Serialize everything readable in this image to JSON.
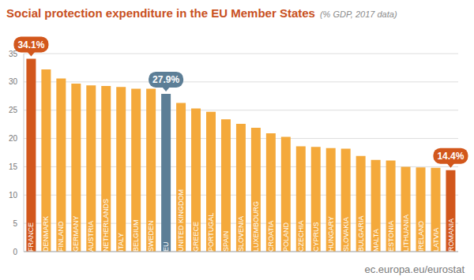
{
  "chart_data": {
    "type": "bar",
    "title": "Social protection expenditure in the EU Member States",
    "subtitle": "(% GDP, 2017 data)",
    "source": "ec.europa.eu/eurostat",
    "categories": [
      "FRANCE",
      "DENMARK",
      "FINLAND",
      "GERMANY",
      "AUSTRIA",
      "NETHERLANDS",
      "ITALY",
      "BELGIUM",
      "SWEDEN",
      "EU",
      "UNITED KINGDOM",
      "GREECE",
      "PORTUGAL",
      "SPAIN",
      "SLOVENIA",
      "LUXEMBOURG",
      "CROATIA",
      "POLAND",
      "CZECHIA",
      "CYPRUS",
      "HUNGARY",
      "SLOVAKIA",
      "BULGARIA",
      "MALTA",
      "ESTONIA",
      "LITHUANIA",
      "IRELAND",
      "LATVIA",
      "ROMANIA"
    ],
    "values": [
      34.1,
      32.2,
      30.6,
      29.7,
      29.4,
      29.3,
      29.1,
      28.8,
      28.8,
      27.9,
      26.3,
      25.3,
      24.7,
      23.4,
      22.6,
      21.9,
      20.9,
      20.3,
      18.6,
      18.5,
      18.3,
      18.2,
      16.9,
      16.2,
      16.1,
      15.0,
      14.9,
      14.8,
      14.4
    ],
    "value_labels": [
      "34.1%",
      null,
      null,
      null,
      null,
      null,
      null,
      null,
      null,
      "27.9%",
      null,
      null,
      null,
      null,
      null,
      null,
      null,
      null,
      null,
      null,
      null,
      null,
      null,
      null,
      null,
      null,
      null,
      null,
      "14.4%"
    ],
    "colors": [
      "#d2571c",
      "#f4a93b",
      "#f4a93b",
      "#f4a93b",
      "#f4a93b",
      "#f4a93b",
      "#f4a93b",
      "#f4a93b",
      "#f4a93b",
      "#5c7e96",
      "#f4a93b",
      "#f4a93b",
      "#f4a93b",
      "#f4a93b",
      "#f4a93b",
      "#f4a93b",
      "#f4a93b",
      "#f4a93b",
      "#f4a93b",
      "#f4a93b",
      "#f4a93b",
      "#f4a93b",
      "#f4a93b",
      "#f4a93b",
      "#f4a93b",
      "#f4a93b",
      "#f4a93b",
      "#f4a93b",
      "#d2571c"
    ],
    "ylim": [
      0,
      35
    ],
    "yticks": [
      0,
      5,
      10,
      15,
      20,
      25,
      30,
      35
    ],
    "grid": true
  }
}
